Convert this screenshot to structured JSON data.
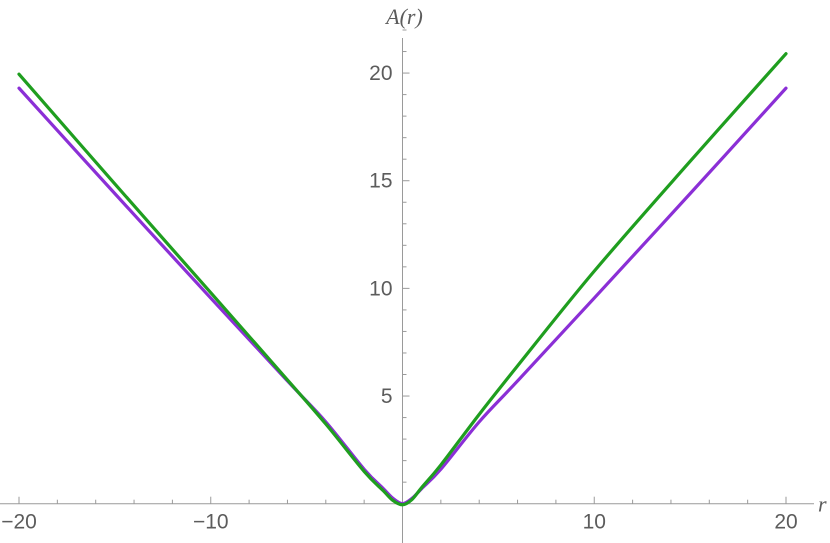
{
  "chart_data": {
    "type": "line",
    "title": "",
    "xlabel": "r",
    "ylabel": "A(r)",
    "xlim": [
      -20,
      20
    ],
    "ylim": [
      -0.2,
      22
    ],
    "x_ticks": [
      -20,
      -10,
      10,
      20
    ],
    "x_tick_labels": [
      "−20",
      "−10",
      "10",
      "20"
    ],
    "y_ticks": [
      5,
      10,
      15,
      20
    ],
    "y_tick_labels": [
      "5",
      "10",
      "15",
      "20"
    ],
    "grid": false,
    "series": [
      {
        "color": "#8b2fd6",
        "x": [
          -20,
          -15,
          -10,
          -6,
          -4,
          -2,
          -1,
          -0.5,
          0,
          0.5,
          1,
          2,
          4,
          6,
          10,
          15,
          20
        ],
        "y": [
          19.3,
          14.4,
          9.55,
          5.7,
          3.8,
          1.6,
          0.7,
          0.25,
          0,
          0.25,
          0.7,
          1.6,
          3.8,
          5.7,
          9.55,
          14.4,
          19.3
        ]
      },
      {
        "color": "#1f9e1f",
        "x": [
          -20,
          -15,
          -10,
          -6,
          -4,
          -2,
          -1,
          -0.5,
          0,
          0.5,
          1,
          2,
          4,
          6,
          10,
          15,
          20
        ],
        "y": [
          19.95,
          14.85,
          9.8,
          5.75,
          3.7,
          1.5,
          0.6,
          0.15,
          -0.05,
          0.2,
          0.75,
          1.8,
          4.15,
          6.4,
          10.8,
          15.9,
          20.9
        ]
      }
    ]
  }
}
